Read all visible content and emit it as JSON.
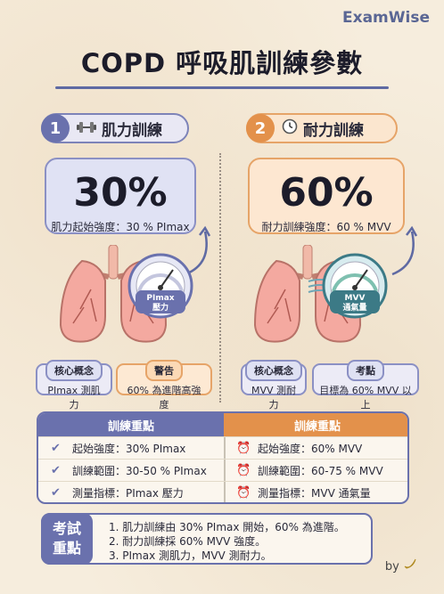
{
  "brand": "ExamWise",
  "title": "COPD 呼吸肌訓練參數",
  "sections": [
    {
      "num": "1",
      "label": "肌力訓練",
      "icon": "dumbbell-icon",
      "big": "30%",
      "sub": "肌力起始強度：30 % PImax",
      "gauge_text": [
        "PImax",
        "壓力"
      ],
      "tag1": {
        "head": "核心概念",
        "text": "PImax 測肌力"
      },
      "tag2": {
        "head": "警告",
        "text": "60% 為進階高強度"
      }
    },
    {
      "num": "2",
      "label": "耐力訓練",
      "icon": "clock-icon",
      "big": "60%",
      "sub": "耐力訓練強度：60 % MVV",
      "gauge_text": [
        "MVV",
        "通氣量"
      ],
      "tag1": {
        "head": "核心概念",
        "text": "MVV 測耐力"
      },
      "tag2": {
        "head": "考點",
        "text": "目標為 60% MVV 以上"
      }
    }
  ],
  "table": {
    "left": {
      "head": "訓練重點",
      "rows": [
        "起始強度：30% PImax",
        "訓練範圍：30-50 % PImax",
        "測量指標：PImax 壓力"
      ]
    },
    "right": {
      "head": "訓練重點",
      "rows": [
        "起始強度：60% MVV",
        "訓練範圍：60-75 % MVV",
        "測量指標：MVV 通氣量"
      ]
    }
  },
  "exam": {
    "badge": [
      "考試",
      "重點"
    ],
    "items": [
      "1. 肌力訓練由 30% PImax 開始，60% 為進階。",
      "2. 耐力訓練採 60% MVV 強度。",
      "3. PImax 測肌力，MVV 測耐力。"
    ]
  },
  "signature": "by",
  "colors": {
    "blue": "#6a71ad",
    "orange": "#e3914b",
    "paper": "#f6eddd"
  }
}
